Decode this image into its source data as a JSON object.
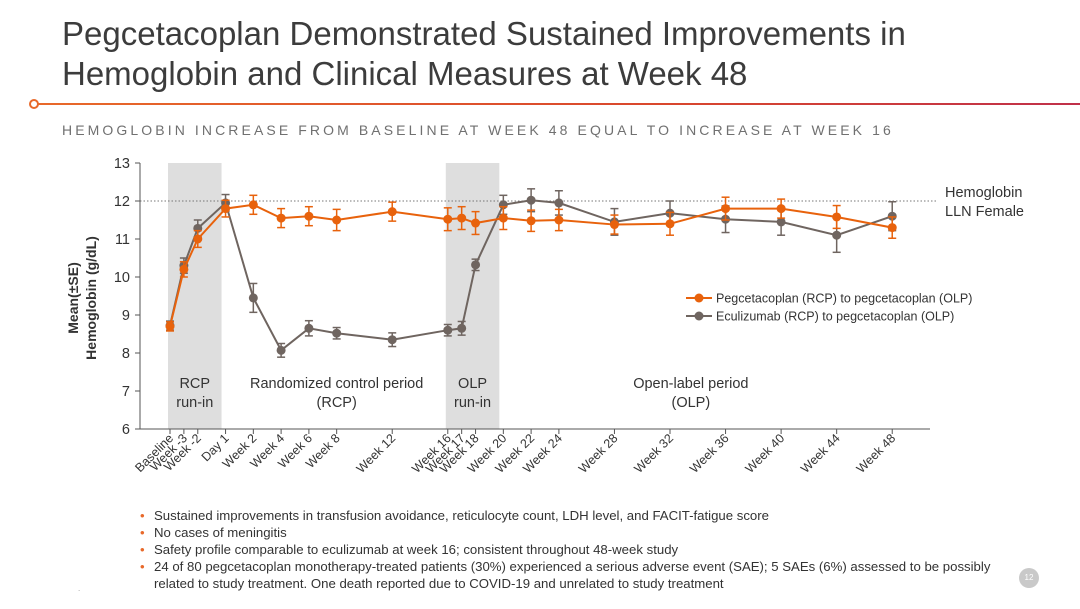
{
  "slide": {
    "title_line1": "Pegcetacoplan Demonstrated Sustained Improvements in",
    "title_line2": "Hemoglobin and Clinical Measures at Week 48",
    "subtitle": "HEMOGLOBIN INCREASE FROM BASELINE AT WEEK 48 EQUAL TO INCREASE AT WEEK 16",
    "page_number": "12",
    "corner_mark": "."
  },
  "bullets": [
    "Sustained improvements in transfusion avoidance, reticulocyte count, LDH level, and FACIT-fatigue score",
    "No cases of meningitis",
    "Safety profile comparable to eculizumab at week 16; consistent throughout 48-week study",
    "24 of 80 pegcetacoplan monotherapy-treated patients (30%) experienced a serious adverse event (SAE); 5 SAEs (6%) assessed to be possibly related to study treatment. One death reported due to COVID-19 and unrelated to study treatment"
  ],
  "colors": {
    "accent": "#e8692a",
    "pegcetacoplan": "#e8620c",
    "eculizumab": "#6f6560",
    "shade": "#dedede"
  },
  "chart_data": {
    "type": "line",
    "ylabel_line1": "Mean(±SE)",
    "ylabel_line2": "Hemoglobin (g/dL)",
    "ylim": [
      6,
      13
    ],
    "yticks": [
      6,
      7,
      8,
      9,
      10,
      11,
      12,
      13
    ],
    "x_week": [
      -4,
      -3,
      -2,
      0,
      2,
      4,
      6,
      8,
      12,
      16,
      17,
      18,
      20,
      22,
      24,
      28,
      32,
      36,
      40,
      44,
      48
    ],
    "x_labels": [
      "Baseline",
      "Week -3",
      "Week -2",
      "Day 1",
      "Week 2",
      "Week 4",
      "Week 6",
      "Week 8",
      "Week 12",
      "Week 16",
      "Week 17",
      "Week 18",
      "Week 20",
      "Week 22",
      "Week 24",
      "Week 28",
      "Week 32",
      "Week 36",
      "Week 40",
      "Week 44",
      "Week 48"
    ],
    "reference_line": {
      "y": 12,
      "label_line1": "Hemoglobin",
      "label_line2": "LLN Female"
    },
    "shaded_periods": [
      {
        "from": -4,
        "to": 0,
        "label_line1": "RCP",
        "label_line2": "run-in"
      },
      {
        "from": 16,
        "to": 20,
        "label_line1": "OLP",
        "label_line2": "run-in"
      }
    ],
    "period_labels": [
      {
        "at": 8,
        "label_line1": "Randomized control period",
        "label_line2": "(RCP)"
      },
      {
        "at": 33.5,
        "label_line1": "Open-label period",
        "label_line2": "(OLP)"
      }
    ],
    "legend_position": "right",
    "series": [
      {
        "name": "Pegcetacoplan (RCP) to pegcetacoplan (OLP)",
        "color": "#e8620c",
        "values": [
          8.7,
          10.2,
          11.0,
          11.8,
          11.9,
          11.55,
          11.6,
          11.5,
          11.72,
          11.52,
          11.55,
          11.42,
          11.55,
          11.48,
          11.5,
          11.38,
          11.4,
          11.8,
          11.8,
          11.58,
          11.3
        ],
        "se": [
          0.12,
          0.2,
          0.22,
          0.22,
          0.25,
          0.25,
          0.25,
          0.28,
          0.25,
          0.3,
          0.3,
          0.3,
          0.3,
          0.28,
          0.28,
          0.25,
          0.3,
          0.3,
          0.25,
          0.3,
          0.28
        ]
      },
      {
        "name": "Eculizumab (RCP) to pegcetacoplan (OLP)",
        "color": "#6f6560",
        "values": [
          8.72,
          10.3,
          11.28,
          11.95,
          9.45,
          8.07,
          8.65,
          8.52,
          8.35,
          8.6,
          8.65,
          10.32,
          11.9,
          12.02,
          11.95,
          11.45,
          11.68,
          11.52,
          11.45,
          11.1,
          11.6
        ],
        "se": [
          0.12,
          0.2,
          0.22,
          0.22,
          0.38,
          0.18,
          0.2,
          0.15,
          0.18,
          0.15,
          0.18,
          0.15,
          0.25,
          0.3,
          0.32,
          0.35,
          0.32,
          0.35,
          0.35,
          0.45,
          0.38
        ]
      }
    ]
  }
}
